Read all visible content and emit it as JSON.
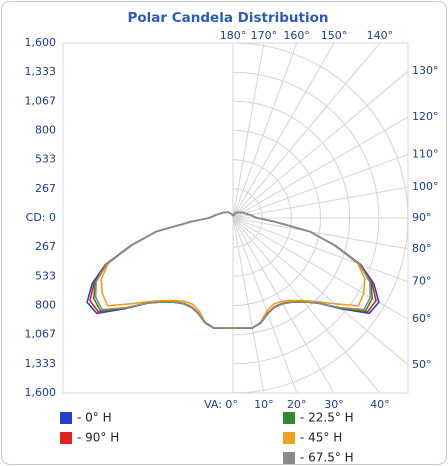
{
  "chart_data": {
    "type": "polar",
    "title": "Polar Candela Distribution",
    "x": [
      0,
      10,
      15,
      20,
      25,
      30,
      35,
      40,
      45,
      50,
      55,
      60,
      65,
      70,
      75,
      80,
      85,
      90,
      100,
      120,
      140,
      160,
      180
    ],
    "xticks": [
      {
        "value": 0,
        "label": "VA: 0°"
      },
      {
        "value": 10,
        "label": "10°"
      },
      {
        "value": 20,
        "label": "20°"
      },
      {
        "value": 30,
        "label": "30°"
      },
      {
        "value": 40,
        "label": "40°"
      },
      {
        "value": 50,
        "label": "50°"
      },
      {
        "value": 60,
        "label": "60°"
      },
      {
        "value": 70,
        "label": "70°"
      },
      {
        "value": 80,
        "label": "80°"
      },
      {
        "value": 90,
        "label": "90°"
      },
      {
        "value": 100,
        "label": "100°"
      },
      {
        "value": 110,
        "label": "110°"
      },
      {
        "value": 120,
        "label": "120°"
      },
      {
        "value": 130,
        "label": "130°"
      },
      {
        "value": 140,
        "label": "140°"
      },
      {
        "value": 150,
        "label": "150°"
      },
      {
        "value": 160,
        "label": "160°"
      },
      {
        "value": 170,
        "label": "170°"
      },
      {
        "value": 180,
        "label": "180°"
      }
    ],
    "ylim": [
      0,
      1600
    ],
    "yticks": [
      {
        "value": 0,
        "label": "CD: 0"
      },
      267,
      533,
      800,
      {
        "value": 1067,
        "label": "1,067"
      },
      {
        "value": 1333,
        "label": "1,333"
      },
      {
        "value": 1600,
        "label": "1,600"
      }
    ],
    "grid": true,
    "series": [
      {
        "name": "- 0° H",
        "color": "#1f3fd0",
        "values": [
          1006,
          1022,
          992,
          930,
          900,
          905,
          940,
          1000,
          1100,
          1290,
          1520,
          1540,
          1420,
          1240,
          965,
          712,
          385,
          222,
          160,
          100,
          70,
          40,
          20
        ]
      },
      {
        "name": "- 90° H",
        "color": "#e52020",
        "values": [
          1006,
          1020,
          990,
          925,
          895,
          900,
          935,
          995,
          1095,
          1280,
          1500,
          1510,
          1400,
          1235,
          960,
          710,
          382,
          220,
          160,
          100,
          70,
          40,
          20
        ]
      },
      {
        "name": "- 22.5° H",
        "color": "#2e8b2e",
        "values": [
          1006,
          1020,
          990,
          930,
          900,
          905,
          940,
          1000,
          1100,
          1280,
          1480,
          1470,
          1390,
          1230,
          960,
          710,
          380,
          220,
          160,
          100,
          70,
          40,
          20
        ]
      },
      {
        "name": "- 45° H",
        "color": "#f0a020",
        "values": [
          1006,
          1018,
          985,
          905,
          870,
          880,
          920,
          985,
          1080,
          1220,
          1400,
          1380,
          1330,
          1215,
          955,
          708,
          380,
          220,
          160,
          100,
          70,
          40,
          20
        ]
      },
      {
        "name": "- 67.5° H",
        "color": "#8a8a8a",
        "values": [
          1006,
          1020,
          990,
          928,
          898,
          903,
          938,
          998,
          1098,
          1275,
          1460,
          1450,
          1380,
          1228,
          960,
          710,
          380,
          220,
          160,
          100,
          70,
          40,
          20
        ]
      }
    ]
  }
}
